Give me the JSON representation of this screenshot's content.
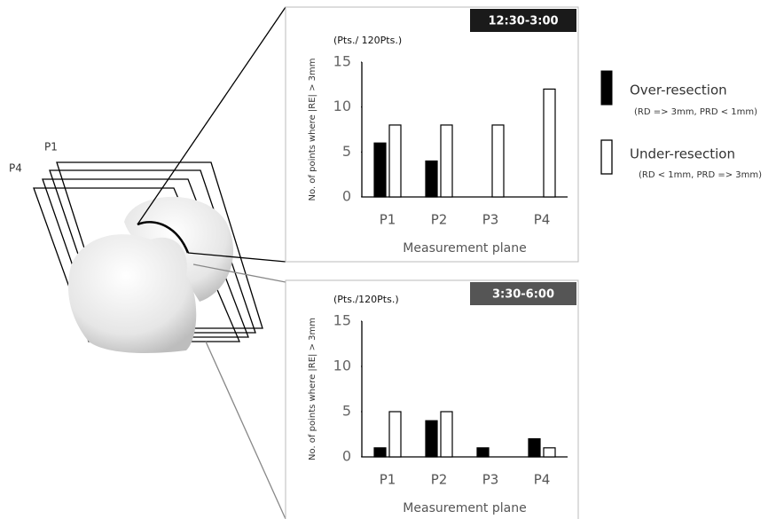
{
  "chart_data": [
    {
      "type": "bar",
      "title": "12:30-3:00",
      "y_unit": "(Pts./ 120Pts.)",
      "y_label": "No. of points where |RE| > 3mm",
      "x_label": "Measurement plane",
      "categories": [
        "P1",
        "P2",
        "P3",
        "P4"
      ],
      "series": [
        {
          "name": "Over-resection",
          "note": "(RD => 3mm, PRD < 1mm)",
          "color": "#000000",
          "values": [
            6,
            4,
            0,
            0
          ]
        },
        {
          "name": "Under-resection",
          "note": "(RD < 1mm, PRD => 3mm)",
          "color": "#ffffff",
          "values": [
            8,
            8,
            8,
            12
          ]
        }
      ],
      "ylim": [
        0,
        15
      ],
      "yticks": [
        0,
        5,
        10,
        15
      ]
    },
    {
      "type": "bar",
      "title": "3:30-6:00",
      "y_unit": "(Pts./120Pts.)",
      "y_label": "No. of points where |RE| > 3mm",
      "x_label": "Measurement plane",
      "categories": [
        "P1",
        "P2",
        "P3",
        "P4"
      ],
      "series": [
        {
          "color": "#000000",
          "values": [
            1,
            4,
            1,
            2
          ]
        },
        {
          "color": "#ffffff",
          "values": [
            5,
            5,
            0,
            1
          ]
        }
      ],
      "ylim": [
        0,
        15
      ],
      "yticks": [
        0,
        5,
        10,
        15
      ]
    }
  ],
  "illustration": {
    "labels": [
      "P1",
      "P4"
    ]
  }
}
